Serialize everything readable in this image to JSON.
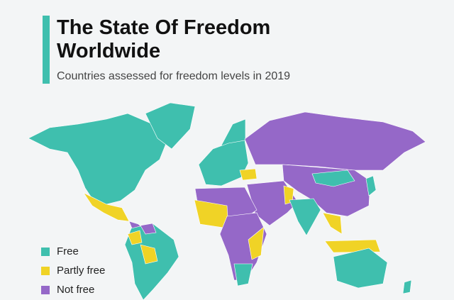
{
  "header": {
    "title_lines": [
      "The State Of Freedom",
      "Worldwide"
    ],
    "subtitle": "Countries assessed for freedom levels in 2019"
  },
  "legend": {
    "items": [
      {
        "label": "Free",
        "color": "#3fbfae"
      },
      {
        "label": "Partly free",
        "color": "#f0d326"
      },
      {
        "label": "Not free",
        "color": "#9568c8"
      }
    ]
  }
}
